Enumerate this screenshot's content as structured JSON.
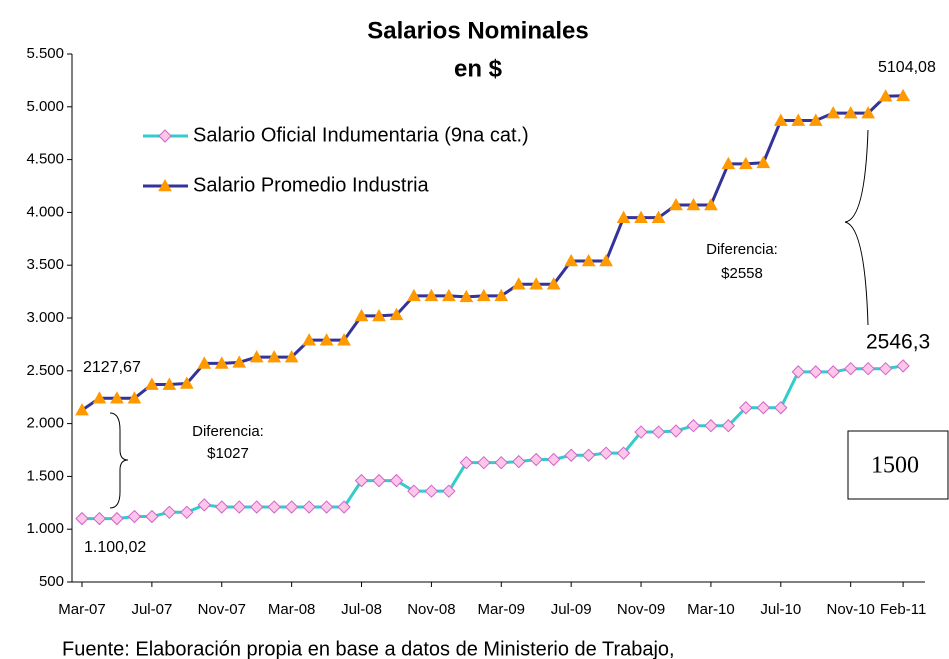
{
  "chart_data": {
    "type": "line",
    "title": "Salarios Nominales",
    "subtitle": "en $",
    "categories": [
      "Mar-07",
      null,
      null,
      null,
      "Jul-07",
      null,
      null,
      null,
      "Nov-07",
      null,
      null,
      null,
      "Mar-08",
      null,
      null,
      null,
      "Jul-08",
      null,
      null,
      null,
      "Nov-08",
      null,
      null,
      null,
      "Mar-09",
      null,
      null,
      null,
      "Jul-09",
      null,
      null,
      null,
      "Nov-09",
      null,
      null,
      null,
      "Mar-10",
      null,
      null,
      null,
      "Jul-10",
      null,
      null,
      null,
      "Nov-10",
      null,
      null,
      "Feb-11"
    ],
    "series": [
      {
        "name": "Salario Oficial Indumentaria (9na cat.)",
        "color": "#33cccc",
        "marker_color": "#ffc6e8",
        "marker_edge": "#cc66cc",
        "values": [
          1100.02,
          1100,
          1100,
          1120,
          1120,
          1160,
          1160,
          1230,
          1210,
          1210,
          1210,
          1210,
          1210,
          1210,
          1210,
          1210,
          1460,
          1460,
          1460,
          1360,
          1360,
          1360,
          1630,
          1630,
          1630,
          1640,
          1660,
          1660,
          1700,
          1700,
          1720,
          1720,
          1920,
          1920,
          1930,
          1980,
          1980,
          1980,
          2150,
          2150,
          2150,
          2490,
          2490,
          2490,
          2520,
          2520,
          2520,
          2546.3
        ]
      },
      {
        "name": "Salario Promedio Industria",
        "color": "#333399",
        "marker_color": "#ff9900",
        "marker_edge": "#ff9900",
        "values": [
          2127.67,
          2240,
          2240,
          2240,
          2370,
          2370,
          2380,
          2570,
          2570,
          2580,
          2630,
          2630,
          2630,
          2790,
          2790,
          2790,
          3020,
          3020,
          3030,
          3210,
          3210,
          3210,
          3200,
          3210,
          3210,
          3320,
          3320,
          3320,
          3540,
          3540,
          3540,
          3950,
          3950,
          3950,
          4070,
          4070,
          4070,
          4460,
          4460,
          4470,
          4870,
          4870,
          4870,
          4940,
          4940,
          4940,
          5100,
          5104.08
        ]
      }
    ],
    "ylim": [
      500,
      5500
    ],
    "yticks": [
      {
        "value": 500,
        "label": "500"
      },
      {
        "value": 1000,
        "label": "1.000"
      },
      {
        "value": 1500,
        "label": "1.500"
      },
      {
        "value": 2000,
        "label": "2.000"
      },
      {
        "value": 2500,
        "label": "2.500"
      },
      {
        "value": 3000,
        "label": "3.000"
      },
      {
        "value": 3500,
        "label": "3.500"
      },
      {
        "value": 4000,
        "label": "4.000"
      },
      {
        "value": 4500,
        "label": "4.500"
      },
      {
        "value": 5000,
        "label": "5.000"
      },
      {
        "value": 5500,
        "label": "5.500"
      }
    ],
    "annotations": [
      [
        "2127,67"
      ],
      [
        "1.100,02"
      ],
      [
        "5104,08"
      ],
      [
        "2546,3"
      ],
      [
        "Diferencia:",
        "$1027"
      ],
      [
        "Diferencia:",
        "$2558"
      ],
      [
        "1500"
      ]
    ],
    "footnote": "Fuente: Elaboración propia en base a datos de Ministerio de Trabajo,"
  }
}
